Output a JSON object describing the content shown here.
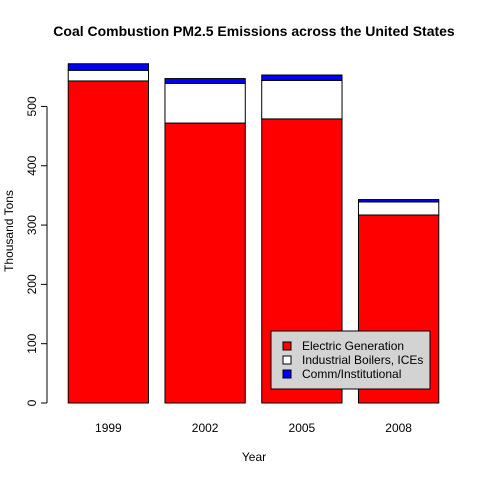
{
  "chart_data": {
    "type": "bar",
    "stacked": true,
    "title": "Coal Combustion PM2.5 Emissions across the United States",
    "xlabel": "Year",
    "ylabel": "Thousand Tons",
    "categories": [
      "1999",
      "2002",
      "2005",
      "2008"
    ],
    "ylim": [
      0,
      580
    ],
    "yticks": [
      0,
      100,
      200,
      300,
      400,
      500
    ],
    "grid": false,
    "legend_position": "bottom-right",
    "series": [
      {
        "name": "Electric Generation",
        "color": "#ff0000",
        "values": [
          543,
          472,
          479,
          317
        ]
      },
      {
        "name": "Industrial Boilers, ICEs",
        "color": "#ffffff",
        "values": [
          18,
          67,
          65,
          22
        ]
      },
      {
        "name": "Comm/Institutional",
        "color": "#0000ff",
        "values": [
          11,
          8,
          9,
          4
        ]
      }
    ]
  }
}
